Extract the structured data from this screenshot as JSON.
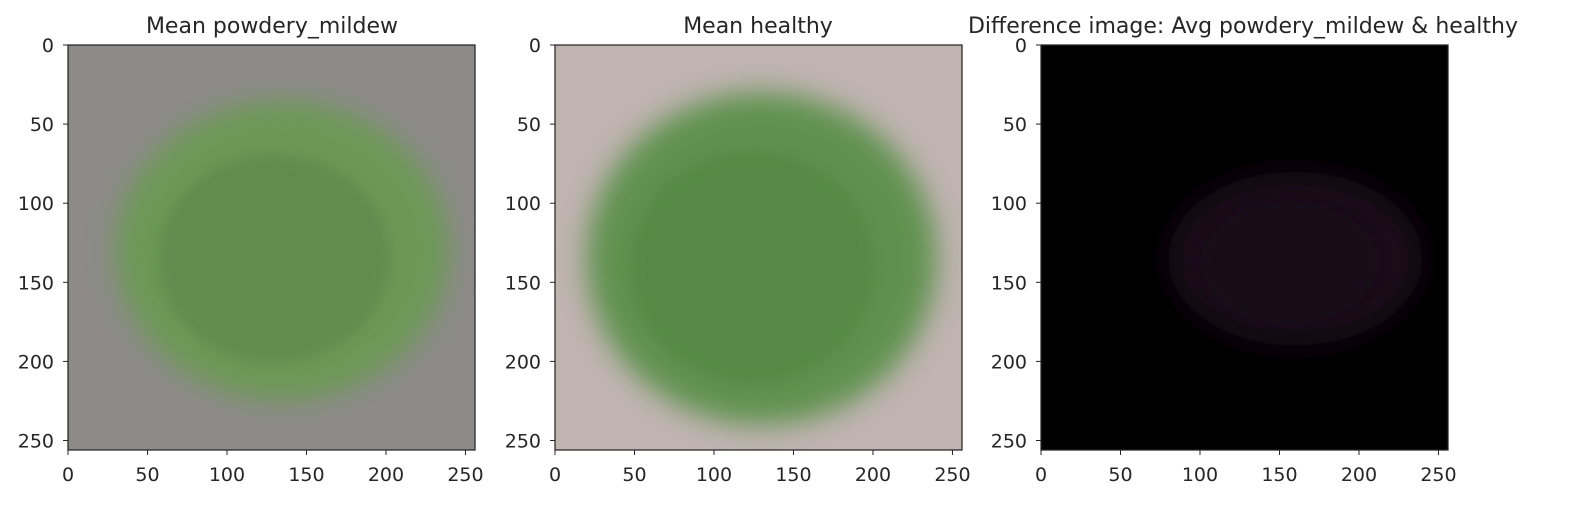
{
  "chart_data": [
    {
      "type": "heatmap",
      "title": "Mean powdery_mildew",
      "x_ticks": [
        0,
        50,
        100,
        150,
        200,
        250
      ],
      "y_ticks": [
        0,
        50,
        100,
        150,
        200,
        250
      ],
      "xlim": [
        0,
        256
      ],
      "ylim": [
        256,
        0
      ],
      "grid": false,
      "image": {
        "background_color": "#8d8a89",
        "leaf_color": "#6a9a52",
        "leaf_dark_color": "#5a8648",
        "leaf_center": [
          135,
          130
        ],
        "leaf_radius": [
          105,
          95
        ]
      }
    },
    {
      "type": "heatmap",
      "title": "Mean healthy",
      "x_ticks": [
        0,
        50,
        100,
        150,
        200,
        250
      ],
      "y_ticks": [
        0,
        50,
        100,
        150,
        200,
        250
      ],
      "xlim": [
        0,
        256
      ],
      "ylim": [
        256,
        0
      ],
      "grid": false,
      "image": {
        "background_color": "#c0b4b1",
        "leaf_color": "#5a9048",
        "leaf_dark_color": "#4f8540",
        "leaf_center": [
          130,
          135
        ],
        "leaf_radius": [
          110,
          105
        ]
      }
    },
    {
      "type": "heatmap",
      "title": "Difference image: Avg powdery_mildew & healthy",
      "x_ticks": [
        0,
        50,
        100,
        150,
        200,
        250
      ],
      "y_ticks": [
        0,
        50,
        100,
        150,
        200,
        250
      ],
      "xlim": [
        0,
        256
      ],
      "ylim": [
        256,
        0
      ],
      "grid": false,
      "image": {
        "background_color": "#000000",
        "leaf_color": "#1c0f1a",
        "leaf_dark_color": "#140a13",
        "leaf_center": [
          160,
          135
        ],
        "leaf_radius": [
          80,
          55
        ]
      }
    }
  ]
}
